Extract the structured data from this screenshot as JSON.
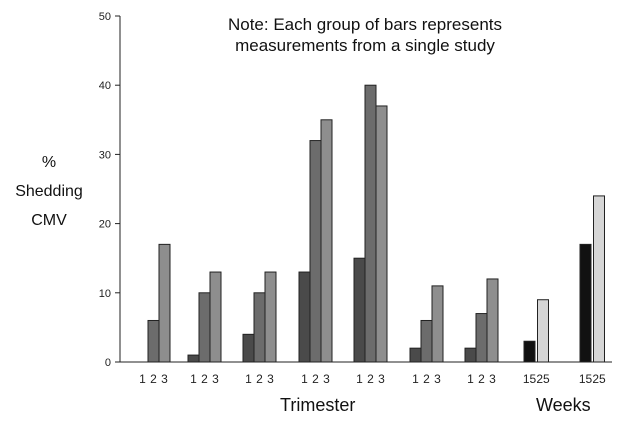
{
  "note": [
    "Note: Each group of bars represents",
    "measurements from a single study"
  ],
  "ylabel": [
    "%",
    "Shedding",
    "CMV"
  ],
  "xgroup_labels": {
    "trimester": "Trimester",
    "weeks": "Weeks"
  },
  "chart_data": {
    "type": "bar",
    "title": "",
    "ylim": [
      0,
      50
    ],
    "yticks": [
      0,
      10,
      20,
      30,
      40,
      50
    ],
    "grid": false,
    "groups": [
      {
        "axis": "Trimester",
        "categories": [
          "1",
          "2",
          "3"
        ],
        "values": [
          0,
          6,
          17
        ]
      },
      {
        "axis": "Trimester",
        "categories": [
          "1",
          "2",
          "3"
        ],
        "values": [
          1,
          10,
          13
        ]
      },
      {
        "axis": "Trimester",
        "categories": [
          "1",
          "2",
          "3"
        ],
        "values": [
          4,
          10,
          13
        ]
      },
      {
        "axis": "Trimester",
        "categories": [
          "1",
          "2",
          "3"
        ],
        "values": [
          13,
          32,
          35
        ]
      },
      {
        "axis": "Trimester",
        "categories": [
          "1",
          "2",
          "3"
        ],
        "values": [
          15,
          40,
          37
        ]
      },
      {
        "axis": "Trimester",
        "categories": [
          "1",
          "2",
          "3"
        ],
        "values": [
          2,
          6,
          11
        ]
      },
      {
        "axis": "Trimester",
        "categories": [
          "1",
          "2",
          "3"
        ],
        "values": [
          2,
          7,
          12
        ]
      },
      {
        "axis": "Weeks",
        "categories": [
          "15",
          "25"
        ],
        "values": [
          3,
          9
        ]
      },
      {
        "axis": "Weeks",
        "categories": [
          "15",
          "25"
        ],
        "values": [
          17,
          24
        ]
      }
    ],
    "colors": {
      "trimester": [
        "#4a4a4a",
        "#6c6c6c",
        "#8e8e8e"
      ],
      "weeks": [
        "#111111",
        "#d6d6d6"
      ]
    }
  }
}
